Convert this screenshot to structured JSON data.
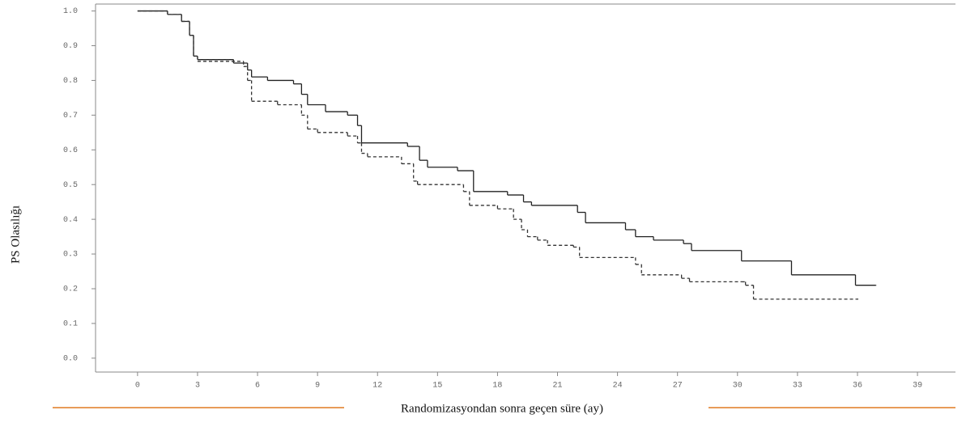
{
  "chart_data": {
    "type": "step",
    "ylabel": "PS Olasılığı",
    "xlabel": "Randomizasyondan sonra geçen süre (ay)",
    "xlim": [
      -2.1,
      40.9
    ],
    "ylim": [
      -0.04,
      1.02
    ],
    "xticks": [
      0,
      3,
      6,
      9,
      12,
      15,
      18,
      21,
      24,
      27,
      30,
      33,
      36,
      39
    ],
    "yticks": [
      {
        "value": 0,
        "label": "0.0"
      },
      {
        "value": 0.1,
        "label": "0.1"
      },
      {
        "value": 0.2,
        "label": "0.2"
      },
      {
        "value": 0.3,
        "label": "0.3"
      },
      {
        "value": 0.4,
        "label": "0.4"
      },
      {
        "value": 0.5,
        "label": "0.5"
      },
      {
        "value": 0.6,
        "label": "0.6"
      },
      {
        "value": 0.7,
        "label": "0.7"
      },
      {
        "value": 0.8,
        "label": "0.8"
      },
      {
        "value": 0.9,
        "label": "0.9"
      },
      {
        "value": 1,
        "label": "1.0"
      }
    ],
    "series": [
      {
        "color": "#222222",
        "dash": "none",
        "x": [
          0,
          1.5,
          2.2,
          2.6,
          2.8,
          3,
          4.8,
          5.5,
          5.7,
          6.5,
          7.8,
          8.2,
          8.5,
          9.4,
          10.5,
          11.0,
          11.2,
          13.5,
          14.1,
          14.5,
          16.0,
          16.8,
          18.5,
          19.3,
          19.7,
          22.0,
          22.4,
          24.4,
          24.9,
          25.8,
          27.3,
          27.7,
          30.2,
          32.7,
          35.9,
          36.9
        ],
        "values": [
          1.0,
          0.99,
          0.97,
          0.93,
          0.87,
          0.86,
          0.85,
          0.83,
          0.81,
          0.8,
          0.79,
          0.76,
          0.73,
          0.71,
          0.7,
          0.67,
          0.62,
          0.61,
          0.57,
          0.55,
          0.54,
          0.48,
          0.47,
          0.45,
          0.44,
          0.42,
          0.39,
          0.37,
          0.35,
          0.34,
          0.33,
          0.31,
          0.28,
          0.24,
          0.21,
          0.21
        ]
      },
      {
        "color": "#333333",
        "dash": "4,3",
        "x": [
          0,
          1.5,
          2.2,
          2.6,
          2.8,
          3,
          5.3,
          5.5,
          5.7,
          7.0,
          8.2,
          8.5,
          9.0,
          10.5,
          11.0,
          11.2,
          11.5,
          13.2,
          13.8,
          14.0,
          16.3,
          16.6,
          18.0,
          18.8,
          19.2,
          19.5,
          20.0,
          20.5,
          21.8,
          22.1,
          24.9,
          25.2,
          27.2,
          27.6,
          30.2,
          30.4,
          30.8,
          36.0
        ],
        "values": [
          1.0,
          0.99,
          0.97,
          0.93,
          0.87,
          0.855,
          0.84,
          0.8,
          0.74,
          0.73,
          0.7,
          0.66,
          0.65,
          0.64,
          0.62,
          0.59,
          0.58,
          0.56,
          0.51,
          0.5,
          0.48,
          0.44,
          0.43,
          0.4,
          0.37,
          0.35,
          0.34,
          0.325,
          0.32,
          0.29,
          0.27,
          0.24,
          0.23,
          0.22,
          0.22,
          0.21,
          0.17,
          0.17
        ]
      }
    ]
  }
}
